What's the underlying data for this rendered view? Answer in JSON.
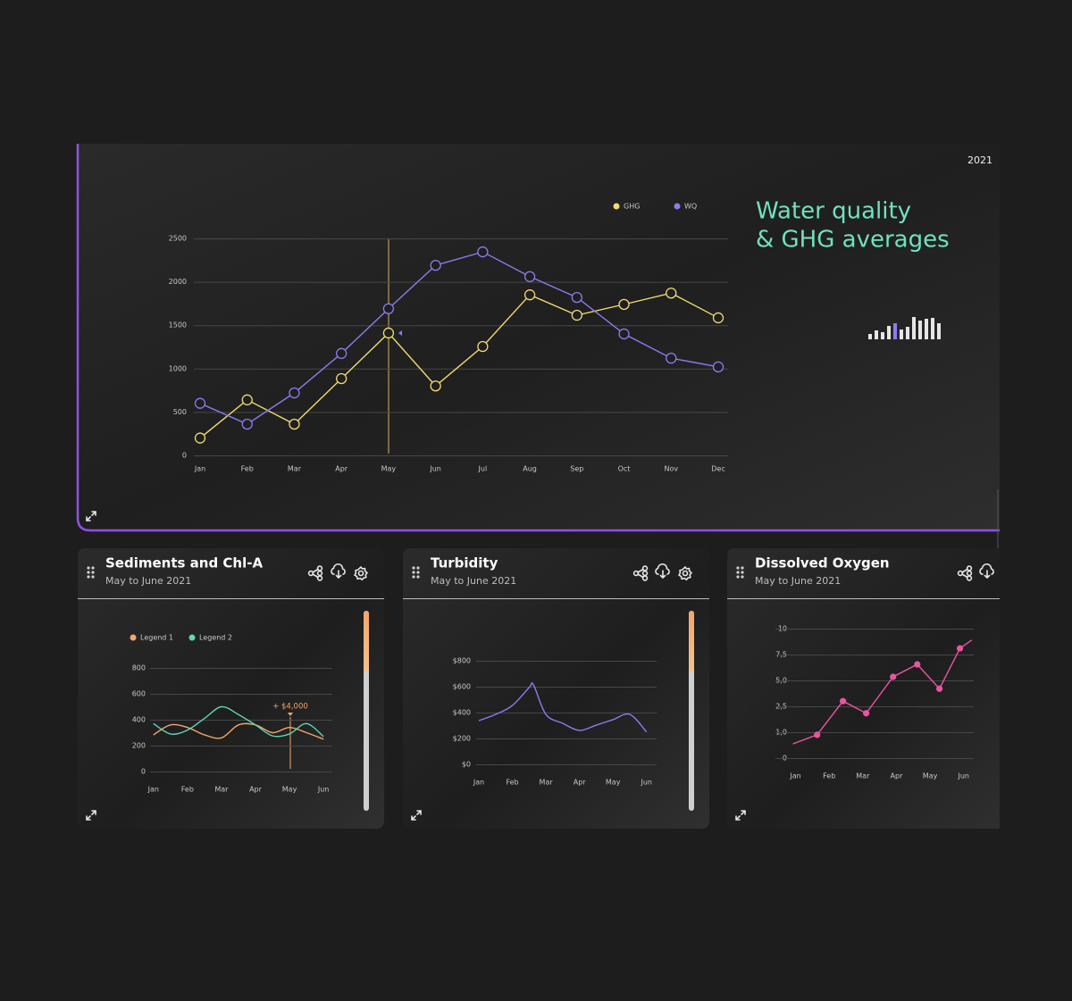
{
  "chart_data": [
    {
      "type": "line",
      "title": [
        "Water quality",
        "& GHG averages"
      ],
      "date": "2021",
      "categories": [
        "Jan",
        "Feb",
        "Mar",
        "Apr",
        "May",
        "Jun",
        "Jul",
        "Aug",
        "Sep",
        "Oct",
        "Nov",
        "Dec"
      ],
      "series": [
        {
          "name": "GHG",
          "color": "#f0dc6e",
          "values": [
            200,
            640,
            360,
            885,
            1410,
            800,
            1255,
            1850,
            1615,
            1740,
            1870,
            1585
          ]
        },
        {
          "name": "WQ",
          "color": "#8b7cf0",
          "values": [
            600,
            360,
            720,
            1175,
            1690,
            2190,
            2345,
            2060,
            1820,
            1400,
            1120,
            1020
          ]
        }
      ],
      "ylim": [
        0,
        2500
      ],
      "yticks": [
        0,
        500,
        1000,
        1500,
        2000,
        2500
      ],
      "grid": true
    },
    {
      "type": "spline",
      "title": "Sediments and Chl-A",
      "subtitle": "May to June 2021",
      "annotation": "+ $4,000",
      "x": [
        0,
        0.5,
        1,
        1.5,
        2,
        2.5,
        3,
        3.5,
        4,
        4.5,
        5
      ],
      "xlim": [
        -0.1,
        5.26
      ],
      "xticks": [
        {
          "value": 0,
          "label": "Jan"
        },
        {
          "value": 1,
          "label": "Feb"
        },
        {
          "value": 2,
          "label": "Mar"
        },
        {
          "value": 3,
          "label": "Apr"
        },
        {
          "value": 4,
          "label": "May"
        },
        {
          "value": 5,
          "label": "Jun"
        }
      ],
      "series": [
        {
          "name": "Legend 1",
          "color": "#f4a66a",
          "values": [
            283,
            360,
            340,
            283,
            260,
            360,
            360,
            300,
            340,
            300,
            250
          ]
        },
        {
          "name": "Legend 2",
          "color": "#5ed6b5",
          "values": [
            370,
            290,
            320,
            410,
            500,
            440,
            360,
            275,
            290,
            370,
            270
          ]
        }
      ],
      "ylim": [
        0,
        800
      ],
      "yticks": [
        0,
        200,
        400,
        600,
        800
      ],
      "grid": true
    },
    {
      "type": "spline",
      "title": "Turbidity",
      "subtitle": "May to June 2021",
      "x": [
        0,
        0.5,
        1,
        1.5,
        1.63,
        2,
        2.5,
        3,
        3.5,
        4,
        4.5,
        5
      ],
      "xlim": [
        -0.08,
        5.3
      ],
      "xticks": [
        {
          "value": 0,
          "label": "Jan"
        },
        {
          "value": 1,
          "label": "Feb"
        },
        {
          "value": 2,
          "label": "Mar"
        },
        {
          "value": 3,
          "label": "Apr"
        },
        {
          "value": 4,
          "label": "May"
        },
        {
          "value": 5,
          "label": "Jun"
        }
      ],
      "series": [
        {
          "color": "#8b7cf0",
          "values": [
            338,
            386,
            455,
            593,
            614,
            386,
            317,
            262,
            303,
            345,
            386,
            250
          ]
        }
      ],
      "ylim": [
        0,
        800
      ],
      "yticks": [
        {
          "value": 0,
          "label": "$0"
        },
        {
          "value": 200,
          "label": "$200"
        },
        {
          "value": 400,
          "label": "$400"
        },
        {
          "value": 600,
          "label": "$600"
        },
        {
          "value": 800,
          "label": "$800"
        }
      ],
      "grid": true
    },
    {
      "type": "line",
      "title": "Dissolved Oxygen",
      "subtitle": "May to June 2021",
      "x": [
        -0.08,
        0.64,
        1.41,
        2.1,
        2.9,
        3.62,
        4.28,
        4.89,
        5.24
      ],
      "xlim": [
        -0.6,
        5.3
      ],
      "xticks": [
        {
          "value": 0,
          "label": "Jan"
        },
        {
          "value": 1,
          "label": "Feb"
        },
        {
          "value": 2,
          "label": "Mar"
        },
        {
          "value": 3,
          "label": "Apr"
        },
        {
          "value": 4,
          "label": "May"
        },
        {
          "value": 5,
          "label": "Jun"
        }
      ],
      "series": [
        {
          "color": "#e9559f",
          "values": [
            0.55,
            0.9,
            3.0,
            2.1,
            5.35,
            6.55,
            4.2,
            8.1,
            8.9
          ]
        }
      ],
      "ylim": [
        0,
        10
      ],
      "yticks": [
        0,
        {
          "value": 1,
          "label": "1,0"
        },
        {
          "value": 2.5,
          "label": "2,5"
        },
        {
          "value": 5,
          "label": "5,0"
        },
        {
          "value": 7.5,
          "label": "7,5"
        },
        10
      ],
      "y_scale": "ticks",
      "grid": true
    }
  ]
}
